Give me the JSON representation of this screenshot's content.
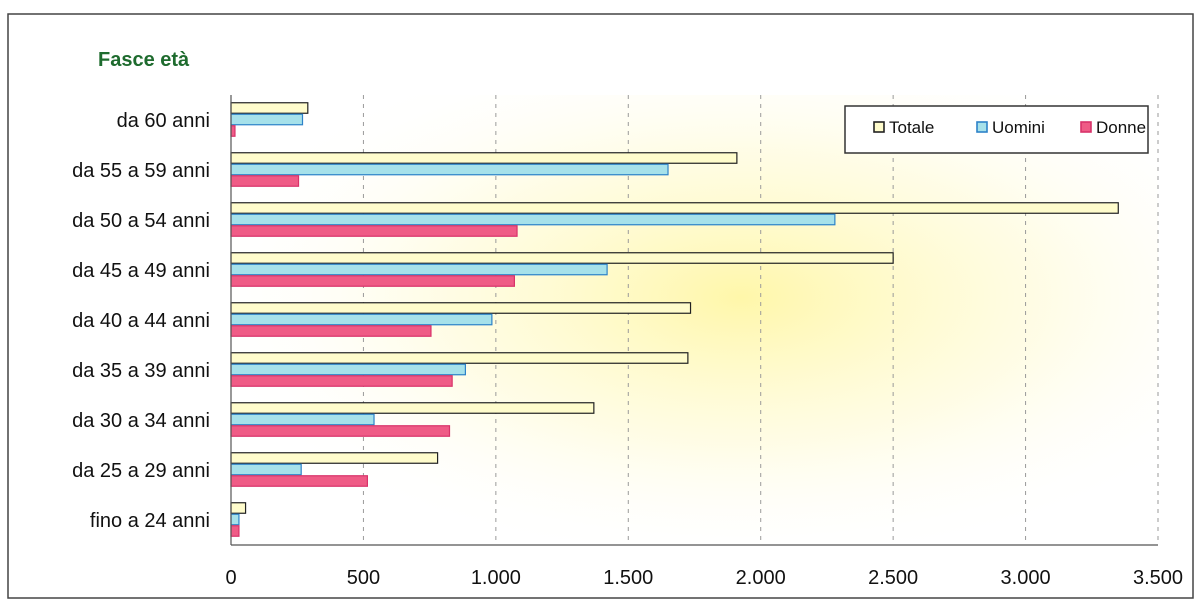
{
  "chart_data": {
    "type": "bar",
    "orientation": "horizontal",
    "title": "Fasce età",
    "categories": [
      "da 60 anni",
      "da 55 a 59 anni",
      "da 50 a 54 anni",
      "da 45 a 49 anni",
      "da 40 a 44 anni",
      "da 35 a 39 anni",
      "da 30 a 34 anni",
      "da 25 a 29 anni",
      "fino a 24 anni"
    ],
    "series": [
      {
        "name": "Totale",
        "color": "#fffccc",
        "values": [
          290,
          1910,
          3350,
          2500,
          1735,
          1725,
          1370,
          780,
          55
        ]
      },
      {
        "name": "Uomini",
        "color": "#a6e1ea",
        "values": [
          270,
          1650,
          2280,
          1420,
          985,
          885,
          540,
          265,
          30
        ]
      },
      {
        "name": "Donne",
        "color": "#ef5b86",
        "values": [
          15,
          255,
          1080,
          1070,
          755,
          835,
          825,
          515,
          30
        ]
      }
    ],
    "xlim": [
      0,
      3500
    ],
    "xticks": [
      "0",
      "500",
      "1.000",
      "1.500",
      "2.000",
      "2.500",
      "3.000",
      "3.500"
    ],
    "grid": "vertical-dashed",
    "legend_position": "top-right"
  }
}
